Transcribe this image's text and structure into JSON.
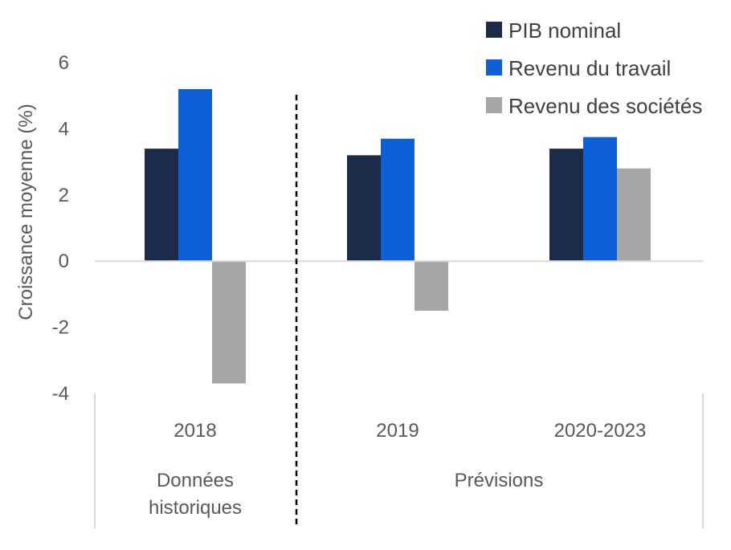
{
  "chart_data": {
    "type": "bar",
    "ylabel": "Croissance moyenne (%)",
    "ylim": [
      -4,
      6
    ],
    "yticks": [
      -4,
      -2,
      0,
      2,
      4,
      6
    ],
    "categories": [
      "2018",
      "2019",
      "2020-2023"
    ],
    "groups": [
      {
        "lines": [
          "Données",
          "historiques"
        ],
        "categories": [
          "2018"
        ]
      },
      {
        "lines": [
          "Prévisions"
        ],
        "categories": [
          "2019",
          "2020-2023"
        ]
      }
    ],
    "series": [
      {
        "name": "PIB nominal",
        "color": "#1c2b4a",
        "values": [
          3.4,
          3.2,
          3.4
        ]
      },
      {
        "name": "Revenu du travail",
        "color": "#0f5fd8",
        "values": [
          5.2,
          3.7,
          3.75
        ]
      },
      {
        "name": "Revenu des sociétés",
        "color": "#a6a6a6",
        "values": [
          -3.7,
          -1.5,
          2.8
        ]
      }
    ],
    "legend_position": "top-right",
    "grid": false
  }
}
